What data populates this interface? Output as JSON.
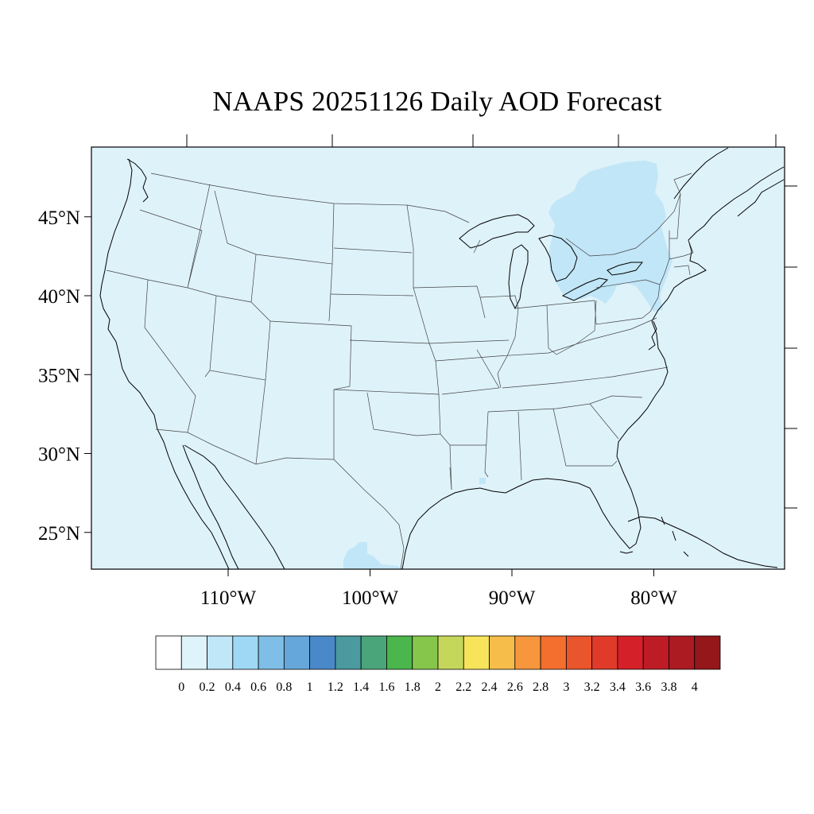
{
  "title": "NAAPS 20251126 Daily AOD Forecast",
  "map": {
    "lon_range": [
      -119,
      -70
    ],
    "lat_range": [
      22.5,
      49.5
    ],
    "background_color": "#def2fa",
    "elevated_color": "#c1e6f7",
    "lat_ticks": [
      "45°N",
      "40°N",
      "35°N",
      "30°N",
      "25°N"
    ],
    "lat_tick_values": [
      45,
      40,
      35,
      30,
      25
    ],
    "lon_ticks": [
      "110°W",
      "100°W",
      "90°W",
      "80°W"
    ],
    "lon_tick_values": [
      -110,
      -100,
      -90,
      -80
    ],
    "elevated_regions": [
      "Ontario / Lake Huron / Lake Erie",
      "New York",
      "Pennsylvania",
      "Northern Mexico"
    ]
  },
  "colorbar": {
    "labels": [
      "0",
      "0.2",
      "0.4",
      "0.6",
      "0.8",
      "1",
      "1.2",
      "1.4",
      "1.6",
      "1.8",
      "2",
      "2.2",
      "2.4",
      "2.6",
      "2.8",
      "3",
      "3.2",
      "3.4",
      "3.6",
      "3.8",
      "4"
    ],
    "colors": [
      "#ffffff",
      "#dff3fb",
      "#bfe7f8",
      "#9ed8f4",
      "#7fbee6",
      "#65a7da",
      "#4a89c9",
      "#4a9aa0",
      "#4aa57a",
      "#4ab64b",
      "#86c64b",
      "#c5d75a",
      "#f7e45a",
      "#f7bd4a",
      "#f7963d",
      "#f46e2d",
      "#e9552c",
      "#e03a2a",
      "#d42028",
      "#bd1b26",
      "#ac1a22",
      "#951719"
    ]
  }
}
